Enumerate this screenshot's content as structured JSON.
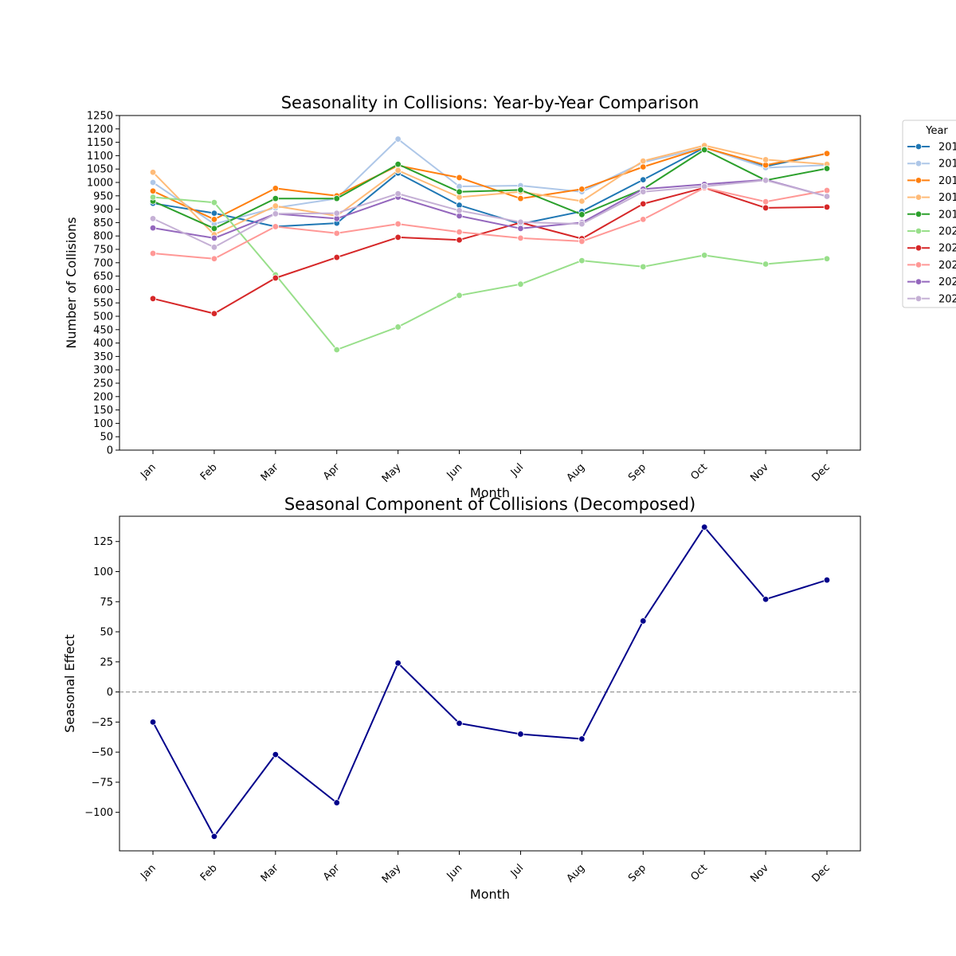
{
  "chart_data": [
    {
      "type": "line",
      "title": "Seasonality in Collisions: Year-by-Year Comparison",
      "xlabel": "Month",
      "ylabel": "Number of Collisions",
      "categories": [
        "Jan",
        "Feb",
        "Mar",
        "Apr",
        "May",
        "Jun",
        "Jul",
        "Aug",
        "Sep",
        "Oct",
        "Nov",
        "Dec"
      ],
      "ylim": [
        0,
        1250
      ],
      "yticks": [
        0,
        50,
        100,
        150,
        200,
        250,
        300,
        350,
        400,
        450,
        500,
        550,
        600,
        650,
        700,
        750,
        800,
        850,
        900,
        950,
        1000,
        1050,
        1100,
        1150,
        1200,
        1250
      ],
      "grid": false,
      "legend": {
        "title": "Year",
        "placement": "outside-right"
      },
      "series": [
        {
          "name": "201",
          "color": "#1f77b4",
          "values": [
            922,
            885,
            835,
            848,
            1035,
            915,
            845,
            892,
            1010,
            1130,
            1060,
            1108
          ]
        },
        {
          "name": "201",
          "color": "#aec7e8",
          "values": [
            1000,
            845,
            905,
            940,
            1162,
            985,
            988,
            965,
            1075,
            1130,
            1055,
            1065
          ]
        },
        {
          "name": "201",
          "color": "#ff7f0e",
          "values": [
            968,
            862,
            978,
            950,
            1063,
            1018,
            940,
            975,
            1058,
            1130,
            1065,
            1108
          ]
        },
        {
          "name": "201",
          "color": "#ffbb78",
          "values": [
            1038,
            805,
            912,
            875,
            1045,
            945,
            965,
            930,
            1080,
            1138,
            1085,
            1068
          ]
        },
        {
          "name": "201",
          "color": "#2ca02c",
          "values": [
            930,
            828,
            940,
            940,
            1068,
            965,
            972,
            880,
            975,
            1122,
            1008,
            1052
          ]
        },
        {
          "name": "202",
          "color": "#98df8a",
          "values": [
            945,
            925,
            655,
            375,
            460,
            578,
            620,
            708,
            685,
            728,
            695,
            715
          ]
        },
        {
          "name": "202",
          "color": "#d62728",
          "values": [
            566,
            510,
            643,
            720,
            795,
            785,
            850,
            790,
            920,
            980,
            905,
            908
          ]
        },
        {
          "name": "202",
          "color": "#ff9896",
          "values": [
            735,
            715,
            835,
            810,
            845,
            815,
            792,
            780,
            862,
            980,
            928,
            970
          ]
        },
        {
          "name": "202",
          "color": "#9467bd",
          "values": [
            830,
            792,
            883,
            865,
            945,
            875,
            828,
            850,
            975,
            993,
            1010,
            948
          ]
        },
        {
          "name": "202",
          "color": "#c5b0d5",
          "values": [
            865,
            758,
            883,
            885,
            958,
            895,
            852,
            845,
            965,
            985,
            1008,
            948
          ]
        }
      ]
    },
    {
      "type": "line",
      "title": "Seasonal Component of Collisions (Decomposed)",
      "xlabel": "Month",
      "ylabel": "Seasonal Effect",
      "categories": [
        "Jan",
        "Feb",
        "Mar",
        "Apr",
        "May",
        "Jun",
        "Jul",
        "Aug",
        "Sep",
        "Oct",
        "Nov",
        "Dec"
      ],
      "ylim": [
        -132,
        146
      ],
      "yticks": [
        -100,
        -75,
        -50,
        -25,
        0,
        25,
        50,
        75,
        100,
        125
      ],
      "grid": false,
      "reference_line": {
        "y": 0,
        "style": "dashed",
        "color": "#808080"
      },
      "series": [
        {
          "color": "#00008b",
          "values": [
            -25,
            -120,
            -52,
            -92,
            24,
            -26,
            -35,
            -39,
            59,
            137,
            77,
            93
          ]
        }
      ]
    }
  ]
}
